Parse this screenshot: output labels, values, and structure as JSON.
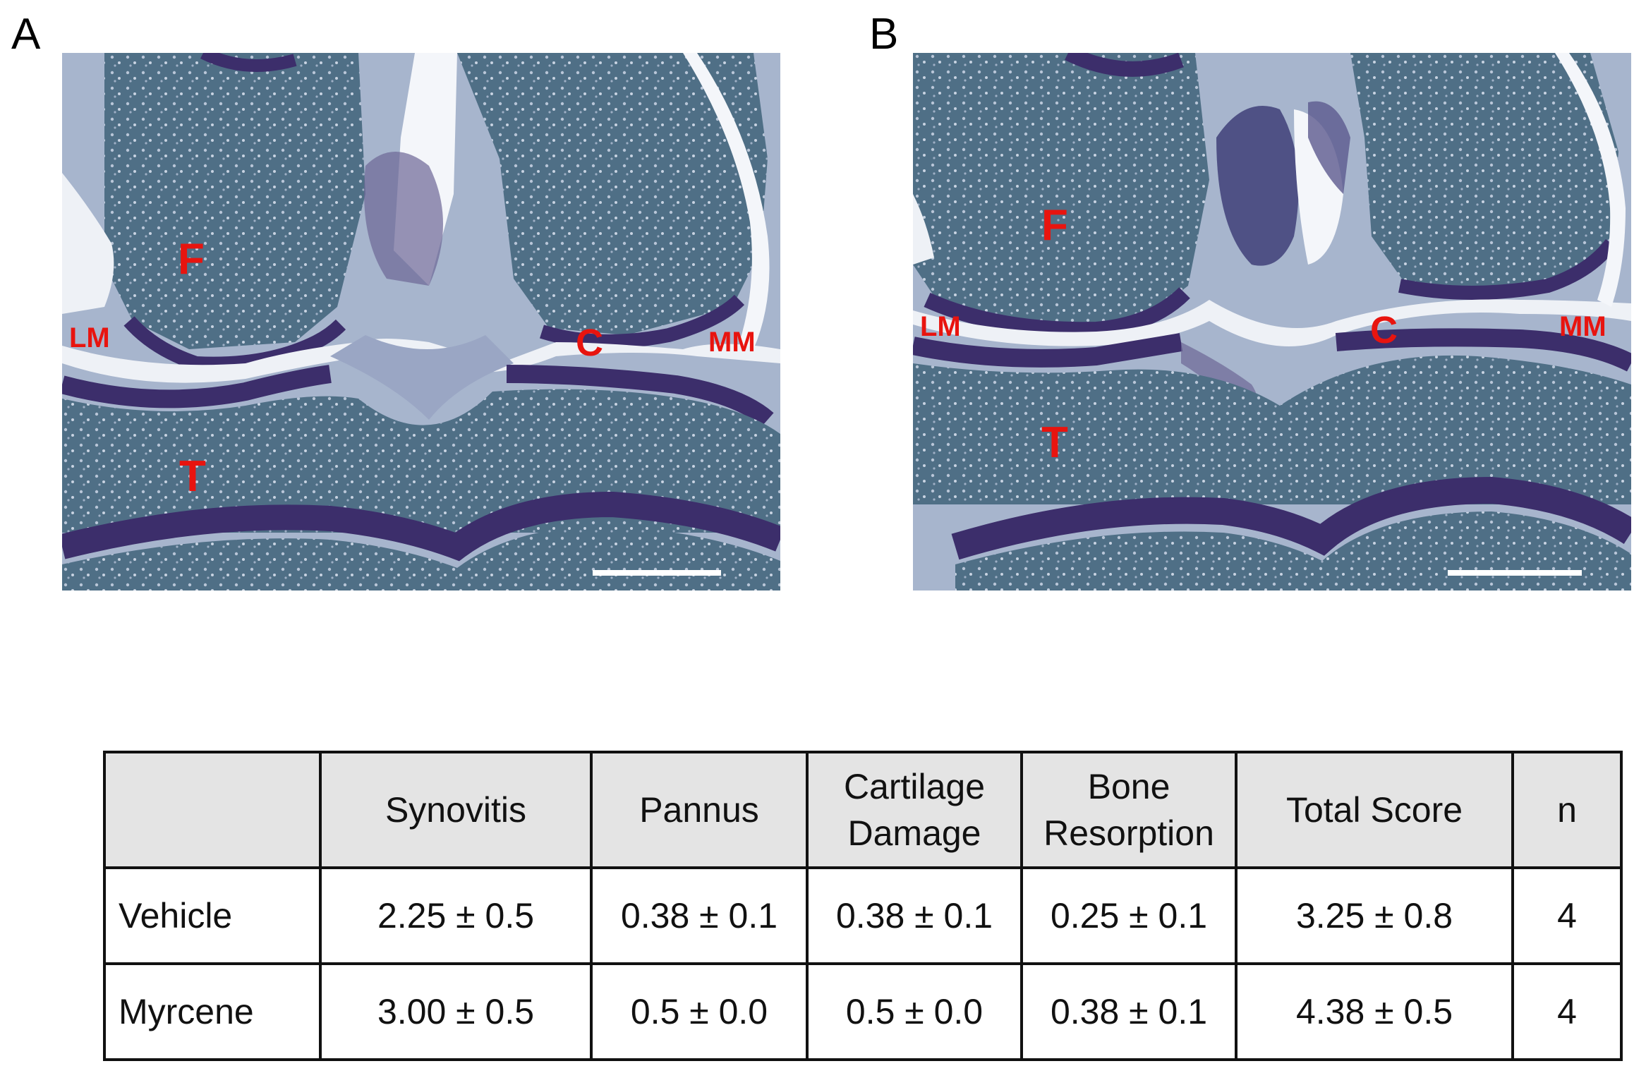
{
  "panels": [
    {
      "letter": "A",
      "labels": {
        "femur": "F",
        "tibia": "T",
        "lateral_meniscus": "LM",
        "medial_meniscus": "MM",
        "cartilage": "C"
      }
    },
    {
      "letter": "B",
      "labels": {
        "femur": "F",
        "tibia": "T",
        "lateral_meniscus": "LM",
        "medial_meniscus": "MM",
        "cartilage": "C"
      }
    }
  ],
  "table": {
    "headers": [
      "",
      "Synovitis",
      "Pannus",
      "Cartilage Damage",
      "Bone Resorption",
      "Total Score",
      "n"
    ],
    "rows": [
      [
        "Vehicle",
        "2.25 ± 0.5",
        "0.38 ± 0.1",
        "0.38 ± 0.1",
        "0.25 ± 0.1",
        "3.25 ± 0.8",
        "4"
      ],
      [
        "Myrcene",
        "3.00 ± 0.5",
        "0.5 ± 0.0",
        "0.5 ± 0.0",
        "0.38 ± 0.1",
        "4.38 ± 0.5",
        "4"
      ]
    ]
  },
  "colors": {
    "label_red": "#e8140f",
    "cartilage": "#3c2e6b",
    "tissue": "#a4b3cc",
    "marrow": "#4f6f86",
    "header_fill": "#e4e4e4"
  }
}
